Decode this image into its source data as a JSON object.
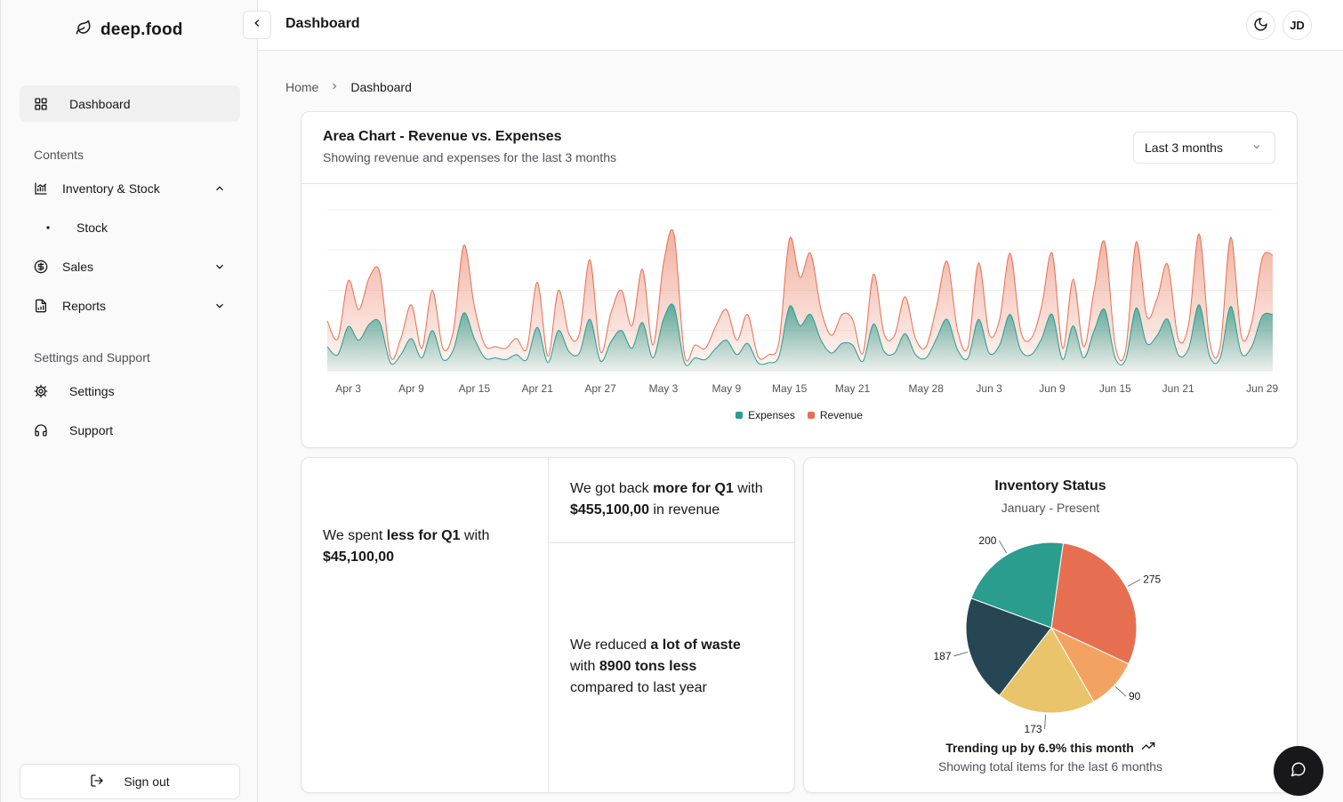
{
  "app": {
    "brand": "deep.food"
  },
  "sidebar": {
    "dashboard": "Dashboard",
    "section_contents": "Contents",
    "inventory": "Inventory & Stock",
    "stock": "Stock",
    "sales": "Sales",
    "reports": "Reports",
    "section_settings": "Settings and Support",
    "settings": "Settings",
    "support": "Support",
    "signout": "Sign out"
  },
  "header": {
    "title": "Dashboard",
    "avatar": "JD"
  },
  "breadcrumb": {
    "home": "Home",
    "current": "Dashboard"
  },
  "area_card": {
    "title": "Area Chart - Revenue vs. Expenses",
    "subtitle": "Showing revenue and expenses for the last 3 months",
    "range": "Last 3 months"
  },
  "stats": {
    "spent_pre": "We spent ",
    "spent_bold": "less for Q1",
    "spent_mid": " with",
    "spent_value": "$45,100,00",
    "back_pre": "We got back ",
    "back_bold": "more for Q1",
    "back_mid": " with",
    "back_value": "$455,100,00",
    "back_post": " in revenue",
    "waste_pre": "We reduced ",
    "waste_bold": "a lot of waste",
    "waste_mid": "with ",
    "waste_bold2": "8900 tons less",
    "waste_post": "compared to last year"
  },
  "inventory_card": {
    "title": "Inventory Status",
    "subtitle": "January - Present",
    "trend": "Trending up by 6.9% this month",
    "footer": "Showing total items for the last 6 months"
  },
  "colors": {
    "expenses": "#2a9d8f",
    "revenue": "#e76f51",
    "pie": [
      "#e76f51",
      "#f4a261",
      "#e9c46a",
      "#264653",
      "#2a9d8f"
    ]
  },
  "chart_data": [
    {
      "type": "area",
      "title": "Area Chart - Revenue vs. Expenses",
      "x_tick_labels": [
        "Apr 3",
        "Apr 9",
        "Apr 15",
        "Apr 21",
        "Apr 27",
        "May 3",
        "May 9",
        "May 15",
        "May 21",
        "May 28",
        "Jun 3",
        "Jun 9",
        "Jun 15",
        "Jun 21",
        "Jun 29"
      ],
      "legend": [
        "Expenses",
        "Revenue"
      ],
      "ylim": [
        0,
        200
      ],
      "x": [
        "Apr 1",
        "Apr 2",
        "Apr 3",
        "Apr 4",
        "Apr 5",
        "Apr 6",
        "Apr 7",
        "Apr 8",
        "Apr 9",
        "Apr 10",
        "Apr 11",
        "Apr 12",
        "Apr 13",
        "Apr 14",
        "Apr 15",
        "Apr 16",
        "Apr 17",
        "Apr 18",
        "Apr 19",
        "Apr 20",
        "Apr 21",
        "Apr 22",
        "Apr 23",
        "Apr 24",
        "Apr 25",
        "Apr 26",
        "Apr 27",
        "Apr 28",
        "Apr 29",
        "Apr 30",
        "May 1",
        "May 2",
        "May 3",
        "May 4",
        "May 5",
        "May 6",
        "May 7",
        "May 8",
        "May 9",
        "May 10",
        "May 11",
        "May 12",
        "May 13",
        "May 14",
        "May 15",
        "May 16",
        "May 17",
        "May 18",
        "May 19",
        "May 20",
        "May 21",
        "May 22",
        "May 23",
        "May 24",
        "May 25",
        "May 26",
        "May 27",
        "May 28",
        "May 29",
        "May 30",
        "May 31",
        "Jun 1",
        "Jun 2",
        "Jun 3",
        "Jun 4",
        "Jun 5",
        "Jun 6",
        "Jun 7",
        "Jun 8",
        "Jun 9",
        "Jun 10",
        "Jun 11",
        "Jun 12",
        "Jun 13",
        "Jun 14",
        "Jun 15",
        "Jun 16",
        "Jun 17",
        "Jun 18",
        "Jun 19",
        "Jun 20",
        "Jun 21",
        "Jun 22",
        "Jun 23",
        "Jun 24",
        "Jun 25",
        "Jun 26",
        "Jun 27",
        "Jun 28",
        "Jun 29",
        "Jun 30"
      ],
      "series": [
        {
          "name": "Revenue",
          "values": [
            62,
            40,
            112,
            76,
            116,
            122,
            18,
            40,
            82,
            28,
            100,
            28,
            50,
            156,
            80,
            32,
            30,
            28,
            40,
            28,
            110,
            18,
            100,
            46,
            46,
            138,
            24,
            72,
            100,
            56,
            126,
            32,
            133,
            170,
            20,
            32,
            28,
            56,
            76,
            38,
            70,
            18,
            20,
            36,
            164,
            116,
            146,
            76,
            44,
            70,
            64,
            22,
            120,
            46,
            44,
            92,
            40,
            30,
            80,
            136,
            50,
            30,
            134,
            46,
            64,
            146,
            50,
            40,
            80,
            146,
            28,
            114,
            30,
            100,
            160,
            32,
            26,
            160,
            68,
            90,
            132,
            40,
            58,
            170,
            36,
            30,
            166,
            44,
            60,
            140,
            144
          ]
        },
        {
          "name": "Expenses",
          "values": [
            30,
            20,
            55,
            38,
            58,
            60,
            10,
            20,
            40,
            16,
            50,
            14,
            26,
            72,
            40,
            16,
            16,
            14,
            20,
            14,
            54,
            10,
            50,
            24,
            22,
            64,
            12,
            36,
            50,
            28,
            60,
            16,
            64,
            80,
            10,
            16,
            14,
            28,
            38,
            20,
            34,
            10,
            10,
            18,
            80,
            56,
            70,
            38,
            22,
            34,
            32,
            12,
            58,
            24,
            22,
            46,
            20,
            16,
            40,
            64,
            26,
            16,
            64,
            22,
            32,
            70,
            26,
            20,
            40,
            70,
            14,
            56,
            16,
            50,
            76,
            16,
            14,
            78,
            34,
            44,
            64,
            20,
            28,
            82,
            18,
            16,
            80,
            22,
            30,
            68,
            70
          ]
        }
      ]
    },
    {
      "type": "pie",
      "title": "Inventory Status",
      "subtitle": "January - Present",
      "values": [
        275,
        90,
        173,
        187,
        200
      ]
    }
  ]
}
